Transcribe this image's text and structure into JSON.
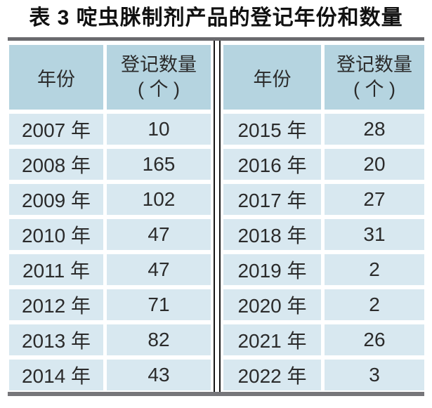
{
  "title": "表 3 啶虫脒制剂产品的登记年份和数量",
  "colors": {
    "header_cell_bg": "#b5d4e0",
    "data_cell_bg": "#d8e8f0",
    "rule_gray": "#6a6a6e",
    "divider_line": "#151515",
    "text": "#2b2b2b"
  },
  "table": {
    "header": {
      "year": "年份",
      "qty_line1": "登记数量",
      "qty_line2": "( 个 )"
    },
    "rows": [
      [
        "2007 年",
        "10",
        "2015 年",
        "28"
      ],
      [
        "2008 年",
        "165",
        "2016 年",
        "20"
      ],
      [
        "2009 年",
        "102",
        "2017 年",
        "27"
      ],
      [
        "2010 年",
        "47",
        "2018 年",
        "31"
      ],
      [
        "2011 年",
        "47",
        "2019 年",
        "2"
      ],
      [
        "2012 年",
        "71",
        "2020 年",
        "2"
      ],
      [
        "2013 年",
        "82",
        "2021 年",
        "26"
      ],
      [
        "2014 年",
        "43",
        "2022 年",
        "3"
      ]
    ]
  },
  "chart_data": {
    "type": "table",
    "title": "表 3 啶虫脒制剂产品的登记年份和数量",
    "columns": [
      "年份",
      "登记数量(个)",
      "年份",
      "登记数量(个)"
    ],
    "years": [
      2007,
      2008,
      2009,
      2010,
      2011,
      2012,
      2013,
      2014,
      2015,
      2016,
      2017,
      2018,
      2019,
      2020,
      2021,
      2022
    ],
    "counts": [
      10,
      165,
      102,
      47,
      47,
      71,
      82,
      43,
      28,
      20,
      27,
      31,
      2,
      2,
      26,
      3
    ]
  }
}
